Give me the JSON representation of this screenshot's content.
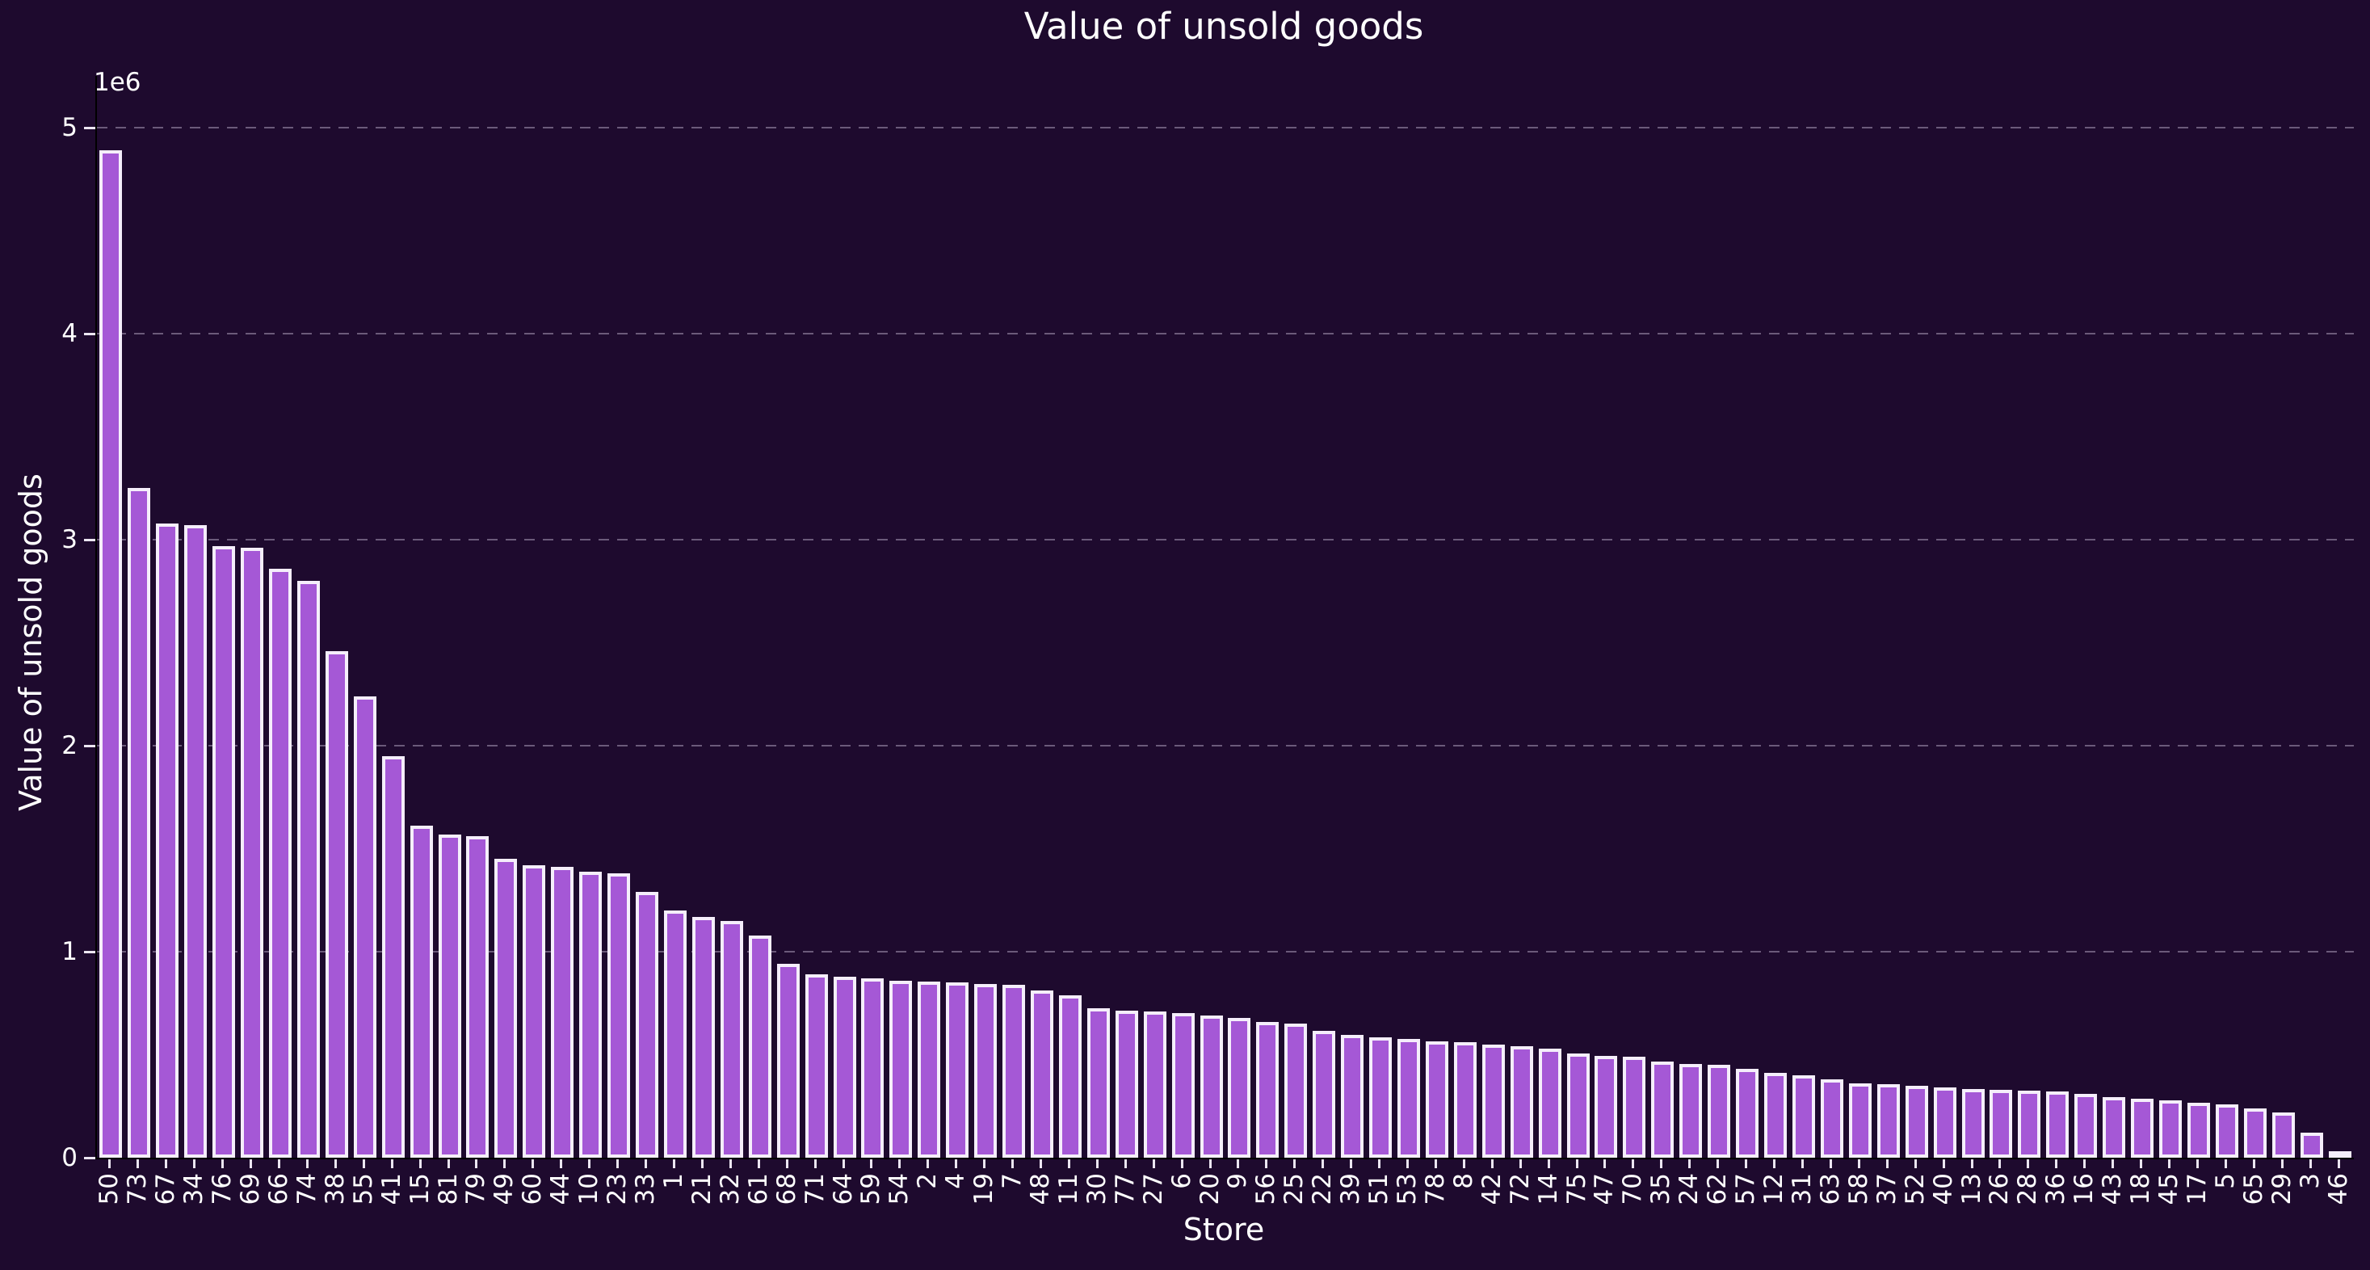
{
  "title": "Value of unsold goods",
  "x_axis": {
    "label": "Store"
  },
  "y_axis": {
    "label": "Value of unsold goods",
    "offset_label": "1e6",
    "ticks": [
      0,
      1,
      2,
      3,
      4,
      5
    ]
  },
  "colors": {
    "background": "#1e0a2e",
    "bar_fill": "#a558d6",
    "bar_edge": "#f5eefb",
    "gridline": "#6b5a7a",
    "text": "#ffffff",
    "spine": "#000000",
    "tick": "#ece6f2"
  },
  "chart_data": {
    "type": "bar",
    "title": "Value of unsold goods",
    "xlabel": "Store",
    "ylabel": "Value of unsold goods",
    "ylim": [
      0,
      5250000
    ],
    "y_scale_offset": "1e6",
    "grid": "horizontal-dashed",
    "legend": "none",
    "sorted": "descending",
    "categories": [
      "50",
      "73",
      "67",
      "34",
      "76",
      "69",
      "66",
      "74",
      "38",
      "55",
      "41",
      "15",
      "81",
      "79",
      "49",
      "60",
      "44",
      "10",
      "23",
      "33",
      "1",
      "21",
      "32",
      "61",
      "68",
      "71",
      "64",
      "59",
      "54",
      "2",
      "4",
      "19",
      "7",
      "48",
      "11",
      "30",
      "77",
      "27",
      "6",
      "20",
      "9",
      "56",
      "25",
      "22",
      "39",
      "51",
      "53",
      "78",
      "8",
      "42",
      "72",
      "14",
      "75",
      "47",
      "70",
      "35",
      "24",
      "62",
      "57",
      "12",
      "31",
      "63",
      "58",
      "37",
      "52",
      "40",
      "13",
      "26",
      "28",
      "36",
      "16",
      "43",
      "18",
      "45",
      "17",
      "5",
      "65",
      "29",
      "3",
      "46"
    ],
    "values": [
      4890000,
      3250000,
      3080000,
      3070000,
      2970000,
      2960000,
      2860000,
      2800000,
      2460000,
      2240000,
      1950000,
      1610000,
      1570000,
      1560000,
      1450000,
      1420000,
      1410000,
      1390000,
      1380000,
      1290000,
      1200000,
      1170000,
      1150000,
      1080000,
      940000,
      890000,
      880000,
      870000,
      860000,
      855000,
      850000,
      845000,
      840000,
      810000,
      790000,
      725000,
      715000,
      710000,
      700000,
      690000,
      680000,
      660000,
      650000,
      615000,
      595000,
      585000,
      575000,
      565000,
      560000,
      550000,
      540000,
      530000,
      505000,
      495000,
      490000,
      465000,
      455000,
      450000,
      430000,
      410000,
      400000,
      380000,
      360000,
      355000,
      350000,
      340000,
      335000,
      330000,
      325000,
      320000,
      310000,
      295000,
      285000,
      280000,
      265000,
      260000,
      240000,
      220000,
      120000,
      15000
    ]
  }
}
